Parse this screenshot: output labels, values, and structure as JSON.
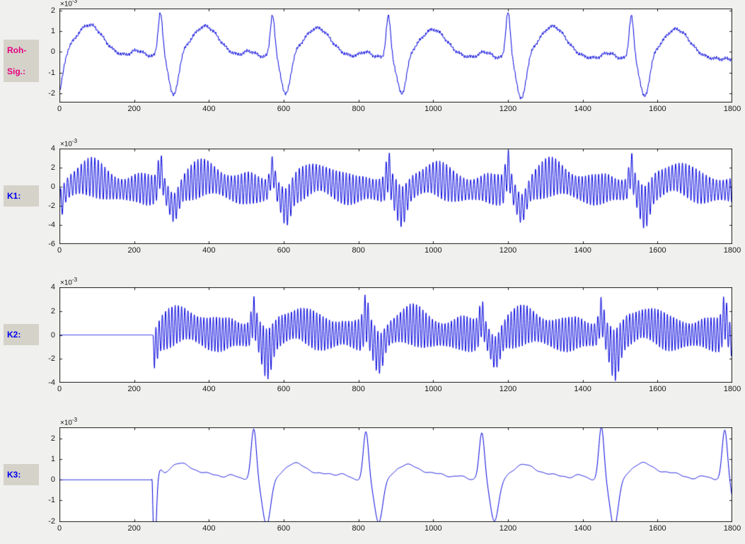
{
  "figure": {
    "background": "#f0f0ee",
    "plot_background": "#ffffff",
    "axis_color": "#1a1a1a",
    "tick_label_color": "#1a1a1a",
    "label_box_bg": "#d5d2ca"
  },
  "chart_data": {
    "type": "line",
    "x_unit": "samples",
    "beats": [
      -40,
      270,
      570,
      880,
      1200,
      1530
    ],
    "beat_scales": [
      1.0,
      0.97,
      0.93,
      0.9,
      1.02,
      0.95
    ],
    "panels": [
      {
        "id": "roh-sig",
        "label_lines": [
          "Roh-",
          "Sig.:"
        ],
        "label_color": "#e6007e",
        "line_color": "#0000dd",
        "x_range": [
          0,
          1800
        ],
        "x_ticks": [
          0,
          200,
          400,
          600,
          800,
          1000,
          1200,
          1400,
          1600,
          1800
        ],
        "y_ticks": [
          -2,
          -1,
          0,
          1,
          2
        ],
        "ylim": [
          -2.45,
          2.1
        ],
        "y_exp_prefix": "×10",
        "y_exp_power": "-3",
        "synthesis": {
          "kind": "raw",
          "seed": 7,
          "p": {
            "amp": 0.28,
            "off": -62,
            "sig": 15
          },
          "r": {
            "amp": 2.2,
            "off": 0,
            "sig": 6
          },
          "s": {
            "amp": -2.05,
            "off": 36,
            "sig": 12
          },
          "t": {
            "amp": 1.5,
            "off": 120,
            "sig": 36
          },
          "baseline_start": -0.18,
          "baseline_slope": -9e-05,
          "noise": 0.05
        }
      },
      {
        "id": "k1",
        "label_lines": [
          "K1:"
        ],
        "label_color": "#0000ee",
        "line_color": "#0000dd",
        "x_range": [
          0,
          1800
        ],
        "x_ticks": [
          0,
          200,
          400,
          600,
          800,
          1000,
          1200,
          1400,
          1600,
          1800
        ],
        "y_ticks": [
          -6,
          -4,
          -2,
          0,
          2,
          4
        ],
        "ylim": [
          -6,
          4
        ],
        "y_exp_prefix": "×10",
        "y_exp_power": "-3",
        "synthesis": {
          "kind": "ripple",
          "seed": 11,
          "delay": 0,
          "gate": null,
          "p": {
            "amp": 0.25,
            "off": -62,
            "sig": 15
          },
          "r": {
            "amp": 2.2,
            "off": 0,
            "sig": 6
          },
          "s": {
            "amp": -2.0,
            "off": 36,
            "sig": 12
          },
          "t": {
            "amp": 1.4,
            "off": 120,
            "sig": 36
          },
          "offset": -0.35,
          "ripple_base": 1.35,
          "ripple_gain": 0.3,
          "ripple_period": 9
        }
      },
      {
        "id": "k2",
        "label_lines": [
          "K2:"
        ],
        "label_color": "#0000ee",
        "line_color": "#0000dd",
        "x_range": [
          0,
          1800
        ],
        "x_ticks": [
          0,
          200,
          400,
          600,
          800,
          1000,
          1200,
          1400,
          1600,
          1800
        ],
        "y_ticks": [
          -4,
          -2,
          0,
          2,
          4
        ],
        "ylim": [
          -4,
          4
        ],
        "y_exp_prefix": "×10",
        "y_exp_power": "-3",
        "synthesis": {
          "kind": "ripple",
          "seed": 23,
          "delay": 250,
          "gate": 250,
          "p": {
            "amp": 0.2,
            "off": -60,
            "sig": 14
          },
          "r": {
            "amp": 1.6,
            "off": 0,
            "sig": 6
          },
          "s": {
            "amp": -1.7,
            "off": 36,
            "sig": 12
          },
          "t": {
            "amp": 0.95,
            "off": 118,
            "sig": 34
          },
          "offset": 0,
          "ripple_base": 1.2,
          "ripple_gain": 0.35,
          "ripple_period": 8.5
        }
      },
      {
        "id": "k3",
        "label_lines": [
          "K3:"
        ],
        "label_color": "#0000ee",
        "line_color": "#0000dd",
        "x_range": [
          0,
          1800
        ],
        "x_ticks": [
          0,
          200,
          400,
          600,
          800,
          1000,
          1200,
          1400,
          1600,
          1800
        ],
        "y_ticks": [
          -2,
          -1,
          0,
          1,
          2
        ],
        "ylim": [
          -2.05,
          2.55
        ],
        "y_exp_prefix": "×10",
        "y_exp_power": "-3",
        "synthesis": {
          "kind": "smooth",
          "seed": 31,
          "delay": 250,
          "gate": 248,
          "p": {
            "amp": 0.22,
            "off": -58,
            "sig": 14
          },
          "r": {
            "amp": 2.55,
            "off": 0,
            "sig": 7
          },
          "s": {
            "amp": -2.25,
            "off": 34,
            "sig": 11
          },
          "t": {
            "amp": 0.82,
            "off": 112,
            "sig": 30
          },
          "u": {
            "amp": 0.3,
            "off": 190,
            "sig": 28
          },
          "noise": 0.02,
          "transients": [
            {
              "amp": 0.3,
              "at": 250,
              "sig": 2
            },
            {
              "amp": -2.0,
              "at": 256,
              "sig": 3.5
            },
            {
              "amp": 0.45,
              "at": 268,
              "sig": 6
            }
          ]
        }
      }
    ]
  }
}
